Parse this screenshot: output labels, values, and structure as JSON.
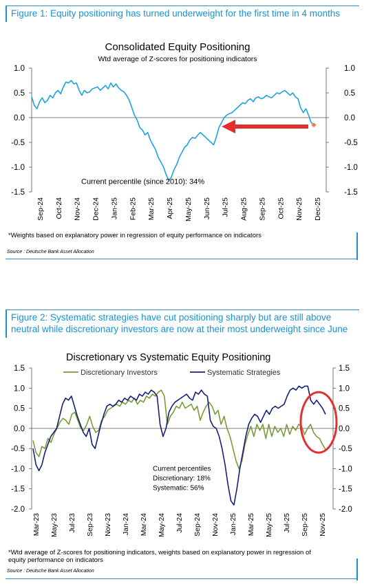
{
  "figure1": {
    "title": "Figure 1: Equity positioning has turned underweight for the first time in 4 months",
    "source": "Source : Deutsche Bank Asset Allocation",
    "footnote": "*Weights based on explanatory power in regression of equity performance on indicators"
  },
  "figure2": {
    "title": "Figure 2: Systematic strategies have cut positioning sharply but are still above neutral while discretionary investors are now at their most underweight since June",
    "source": "Source : Deutsche Bank Asset Allocation",
    "footnote": "*Wtd average of Z-scores for positioning indicators, weights based on explanatory power in regression of equity performance on indicators"
  },
  "chart_data": [
    {
      "type": "line",
      "title": "Consolidated Equity Positioning",
      "subtitle": "Wtd average of Z-scores for positioning indicators",
      "ylim": [
        -1.5,
        1.0
      ],
      "yticks": [
        "1.0",
        "0.5",
        "0.0",
        "-0.5",
        "-1.0",
        "-1.5"
      ],
      "xticks": [
        "Sep-24",
        "Oct-24",
        "Nov-24",
        "Dec-24",
        "Jan-25",
        "Feb-25",
        "Mar-25",
        "Apr-25",
        "May-25",
        "Jun-25",
        "Jul-25",
        "Aug-25",
        "Sep-25",
        "Oct-25",
        "Nov-25",
        "Dec-25"
      ],
      "annotation": "Current percentile (since 2010): 34%",
      "series_color": "#1ba3dc",
      "arrow_color": "#e03030",
      "marker_color": "#f08040",
      "series": [
        {
          "values": [
            0.42,
            0.25,
            0.18,
            0.32,
            0.4,
            0.3,
            0.35,
            0.45,
            0.4,
            0.5,
            0.55,
            0.48,
            0.62,
            0.72,
            0.7,
            0.75,
            0.68,
            0.7,
            0.55,
            0.45,
            0.55,
            0.5,
            0.52,
            0.58,
            0.6,
            0.62,
            0.55,
            0.6,
            0.65,
            0.58,
            0.7,
            0.62,
            0.68,
            0.6,
            0.55,
            0.52,
            0.45,
            0.35,
            0.2,
            0.05,
            -0.05,
            -0.2,
            -0.25,
            -0.35,
            -0.3,
            -0.45,
            -0.55,
            -0.65,
            -0.8,
            -0.9,
            -1.0,
            -1.15,
            -1.27,
            -1.2,
            -1.05,
            -0.95,
            -0.8,
            -0.7,
            -0.6,
            -0.55,
            -0.45,
            -0.4,
            -0.42,
            -0.35,
            -0.3,
            -0.35,
            -0.4,
            -0.45,
            -0.5,
            -0.55,
            -0.4,
            -0.2,
            -0.1,
            0.0,
            0.05,
            0.08,
            0.1,
            0.15,
            0.2,
            0.25,
            0.3,
            0.28,
            0.35,
            0.38,
            0.32,
            0.4,
            0.42,
            0.38,
            0.4,
            0.45,
            0.42,
            0.4,
            0.45,
            0.5,
            0.48,
            0.52,
            0.55,
            0.5,
            0.45,
            0.5,
            0.42,
            0.38,
            0.2,
            0.1,
            0.18,
            0.05,
            -0.1,
            -0.15
          ]
        }
      ]
    },
    {
      "type": "line",
      "title": "Discretionary  vs Systematic Equity Positioning",
      "ylim": [
        -2.0,
        1.5
      ],
      "yticks": [
        "1.5",
        "1.0",
        "0.5",
        "0.0",
        "-0.5",
        "-1.0",
        "-1.5",
        "-2.0"
      ],
      "xticks": [
        "Mar-23",
        "May-23",
        "Jul-23",
        "Sep-23",
        "Nov-23",
        "Jan-24",
        "Mar-24",
        "May-24",
        "Jul-24",
        "Sep-24",
        "Nov-24",
        "Jan-25",
        "Mar-25",
        "May-25",
        "Jul-25",
        "Sep-25",
        "Nov-25"
      ],
      "annotations": [
        "Current percentiles",
        "Discretionary: 18%",
        "Systematic: 56%"
      ],
      "highlight_color": "#e03030",
      "series": [
        {
          "name": "Discretionary Investors",
          "color": "#7a9a3a",
          "values": [
            -0.3,
            -0.6,
            -0.7,
            -0.45,
            -0.5,
            -0.25,
            -0.35,
            -0.15,
            0.0,
            0.15,
            0.25,
            0.2,
            0.1,
            0.35,
            0.4,
            0.2,
            0.0,
            -0.05,
            0.1,
            0.3,
            0.05,
            -0.1,
            -0.05,
            0.2,
            0.3,
            0.45,
            0.5,
            0.55,
            0.6,
            0.55,
            0.65,
            0.6,
            0.7,
            0.65,
            0.75,
            0.6,
            0.7,
            0.65,
            0.8,
            0.75,
            0.85,
            0.8,
            0.9,
            0.95,
            0.8,
            0.1,
            0.3,
            0.4,
            0.55,
            0.5,
            0.65,
            0.5,
            0.55,
            0.6,
            0.45,
            0.55,
            0.2,
            0.4,
            0.55,
            0.65,
            0.55,
            0.35,
            0.45,
            0.1,
            0.3,
            0.0,
            -0.2,
            -0.5,
            -0.8,
            -1.0,
            -0.8,
            -0.4,
            -0.15,
            0.05,
            -0.2,
            0.1,
            -0.05,
            0.1,
            -0.25,
            0.1,
            -0.2,
            0.05,
            -0.1,
            0.0,
            -0.2,
            0.1,
            -0.15,
            0.05,
            -0.05,
            0.1,
            0.05,
            -0.15,
            0.0,
            0.1,
            -0.1,
            -0.2,
            -0.25,
            -0.4,
            -0.52
          ]
        },
        {
          "name": "Systematic Strategies",
          "color": "#161e78",
          "values": [
            -0.5,
            -0.9,
            -1.05,
            -0.9,
            -0.6,
            -0.4,
            -0.2,
            -0.1,
            0.0,
            0.3,
            0.6,
            0.75,
            0.7,
            0.8,
            0.55,
            0.3,
            0.1,
            -0.1,
            -0.2,
            0.0,
            -0.4,
            -0.5,
            -0.2,
            0.1,
            0.35,
            0.55,
            0.6,
            0.55,
            0.6,
            0.7,
            0.65,
            0.75,
            0.7,
            0.8,
            0.75,
            0.7,
            0.85,
            0.8,
            0.9,
            0.85,
            0.95,
            0.9,
            0.8,
            0.1,
            -0.2,
            0.0,
            0.4,
            0.55,
            0.65,
            0.7,
            0.75,
            0.8,
            0.85,
            0.75,
            0.7,
            0.9,
            0.85,
            0.95,
            0.85,
            0.8,
            0.2,
            0.05,
            0.0,
            -0.2,
            -0.5,
            -0.9,
            -1.4,
            -1.8,
            -1.9,
            -1.5,
            -1.0,
            -0.6,
            -0.2,
            0.1,
            0.25,
            0.35,
            0.3,
            0.15,
            0.3,
            0.45,
            0.35,
            0.5,
            0.55,
            0.5,
            0.55,
            0.6,
            0.8,
            0.95,
            1.0,
            0.95,
            1.05,
            1.0,
            1.05,
            1.05,
            0.7,
            0.6,
            0.7,
            0.6,
            0.5,
            0.35
          ]
        }
      ]
    }
  ]
}
